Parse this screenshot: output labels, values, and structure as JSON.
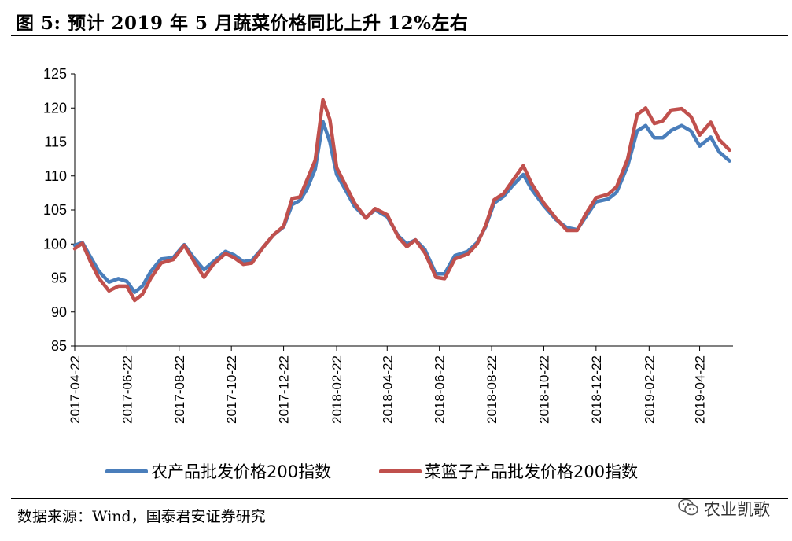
{
  "header": {
    "title": "图 5:  预计 2019 年 5 月蔬菜价格同比上升 12%左右"
  },
  "footer": {
    "source": "数据来源：Wind，国泰君安证券研究",
    "watermark": "农业凯歌",
    "watermark_icon": "wechat-icon"
  },
  "chart_data": {
    "type": "line",
    "title": "",
    "xlabel": "",
    "ylabel": "",
    "ylim": [
      85,
      125
    ],
    "yticks": [
      85,
      90,
      95,
      100,
      105,
      110,
      115,
      120,
      125
    ],
    "xlim": [
      "2017-04-22",
      "2019-05-31"
    ],
    "xticks": [
      "2017-04-22",
      "2017-06-22",
      "2017-08-22",
      "2017-10-22",
      "2017-12-22",
      "2018-02-22",
      "2018-04-22",
      "2018-06-22",
      "2018-08-22",
      "2018-10-22",
      "2018-12-22",
      "2019-02-22",
      "2019-04-22"
    ],
    "grid": false,
    "legend_position": "bottom",
    "series": [
      {
        "name": "农产品批发价格200指数",
        "color": "#4a7ebb",
        "points": [
          [
            "2017-04-22",
            99.8
          ],
          [
            "2017-05-01",
            100.2
          ],
          [
            "2017-05-10",
            98.2
          ],
          [
            "2017-05-20",
            96.0
          ],
          [
            "2017-06-01",
            94.4
          ],
          [
            "2017-06-12",
            94.9
          ],
          [
            "2017-06-22",
            94.5
          ],
          [
            "2017-07-01",
            92.9
          ],
          [
            "2017-07-10",
            93.8
          ],
          [
            "2017-07-20",
            96.0
          ],
          [
            "2017-08-01",
            97.8
          ],
          [
            "2017-08-15",
            98.0
          ],
          [
            "2017-08-28",
            99.9
          ],
          [
            "2017-09-08",
            98.0
          ],
          [
            "2017-09-20",
            96.2
          ],
          [
            "2017-10-01",
            97.4
          ],
          [
            "2017-10-15",
            98.9
          ],
          [
            "2017-10-25",
            98.4
          ],
          [
            "2017-11-05",
            97.4
          ],
          [
            "2017-11-15",
            97.6
          ],
          [
            "2017-11-28",
            99.5
          ],
          [
            "2017-12-10",
            101.3
          ],
          [
            "2017-12-22",
            102.5
          ],
          [
            "2018-01-01",
            105.8
          ],
          [
            "2018-01-10",
            106.4
          ],
          [
            "2018-01-18",
            108.0
          ],
          [
            "2018-01-28",
            111.0
          ],
          [
            "2018-02-06",
            118.0
          ],
          [
            "2018-02-14",
            115.0
          ],
          [
            "2018-02-22",
            110.2
          ],
          [
            "2018-03-05",
            107.8
          ],
          [
            "2018-03-15",
            105.5
          ],
          [
            "2018-03-28",
            103.9
          ],
          [
            "2018-04-08",
            105.0
          ],
          [
            "2018-04-22",
            104.0
          ],
          [
            "2018-05-05",
            101.2
          ],
          [
            "2018-05-15",
            100.0
          ],
          [
            "2018-05-25",
            100.6
          ],
          [
            "2018-06-05",
            99.2
          ],
          [
            "2018-06-18",
            95.6
          ],
          [
            "2018-06-28",
            95.6
          ],
          [
            "2018-07-10",
            98.3
          ],
          [
            "2018-07-25",
            98.9
          ],
          [
            "2018-08-05",
            100.2
          ],
          [
            "2018-08-15",
            102.5
          ],
          [
            "2018-08-25",
            106.0
          ],
          [
            "2018-09-05",
            107.0
          ],
          [
            "2018-09-15",
            108.5
          ],
          [
            "2018-09-28",
            110.2
          ],
          [
            "2018-10-08",
            108.0
          ],
          [
            "2018-10-22",
            105.6
          ],
          [
            "2018-11-05",
            103.6
          ],
          [
            "2018-11-18",
            102.4
          ],
          [
            "2018-11-30",
            102.1
          ],
          [
            "2018-12-10",
            104.0
          ],
          [
            "2018-12-22",
            106.2
          ],
          [
            "2019-01-05",
            106.6
          ],
          [
            "2019-01-15",
            107.6
          ],
          [
            "2019-01-28",
            111.5
          ],
          [
            "2019-02-08",
            116.6
          ],
          [
            "2019-02-18",
            117.4
          ],
          [
            "2019-02-28",
            115.6
          ],
          [
            "2019-03-10",
            115.6
          ],
          [
            "2019-03-20",
            116.7
          ],
          [
            "2019-04-01",
            117.4
          ],
          [
            "2019-04-12",
            116.6
          ],
          [
            "2019-04-22",
            114.4
          ],
          [
            "2019-05-05",
            115.7
          ],
          [
            "2019-05-15",
            113.5
          ],
          [
            "2019-05-27",
            112.2
          ]
        ]
      },
      {
        "name": "菜篮子产品批发价格200指数",
        "color": "#c0504d",
        "points": [
          [
            "2017-04-22",
            99.3
          ],
          [
            "2017-05-01",
            100.1
          ],
          [
            "2017-05-10",
            97.5
          ],
          [
            "2017-05-20",
            95.0
          ],
          [
            "2017-06-01",
            93.1
          ],
          [
            "2017-06-12",
            93.8
          ],
          [
            "2017-06-22",
            93.8
          ],
          [
            "2017-07-01",
            91.7
          ],
          [
            "2017-07-10",
            92.6
          ],
          [
            "2017-07-20",
            95.0
          ],
          [
            "2017-08-01",
            97.2
          ],
          [
            "2017-08-15",
            97.7
          ],
          [
            "2017-08-28",
            99.8
          ],
          [
            "2017-09-08",
            97.5
          ],
          [
            "2017-09-20",
            95.1
          ],
          [
            "2017-10-01",
            97.0
          ],
          [
            "2017-10-15",
            98.6
          ],
          [
            "2017-10-25",
            98.0
          ],
          [
            "2017-11-05",
            97.0
          ],
          [
            "2017-11-15",
            97.2
          ],
          [
            "2017-11-28",
            99.5
          ],
          [
            "2017-12-10",
            101.3
          ],
          [
            "2017-12-22",
            102.6
          ],
          [
            "2018-01-01",
            106.7
          ],
          [
            "2018-01-10",
            106.9
          ],
          [
            "2018-01-18",
            109.3
          ],
          [
            "2018-01-28",
            112.3
          ],
          [
            "2018-02-06",
            121.2
          ],
          [
            "2018-02-14",
            118.3
          ],
          [
            "2018-02-22",
            111.2
          ],
          [
            "2018-03-05",
            108.5
          ],
          [
            "2018-03-15",
            106.0
          ],
          [
            "2018-03-28",
            103.8
          ],
          [
            "2018-04-08",
            105.2
          ],
          [
            "2018-04-22",
            104.3
          ],
          [
            "2018-05-05",
            101.0
          ],
          [
            "2018-05-15",
            99.6
          ],
          [
            "2018-05-25",
            100.6
          ],
          [
            "2018-06-05",
            98.7
          ],
          [
            "2018-06-18",
            95.1
          ],
          [
            "2018-06-28",
            94.9
          ],
          [
            "2018-07-10",
            97.8
          ],
          [
            "2018-07-25",
            98.5
          ],
          [
            "2018-08-05",
            100.0
          ],
          [
            "2018-08-15",
            102.7
          ],
          [
            "2018-08-25",
            106.5
          ],
          [
            "2018-09-05",
            107.4
          ],
          [
            "2018-09-15",
            109.2
          ],
          [
            "2018-09-28",
            111.5
          ],
          [
            "2018-10-08",
            108.8
          ],
          [
            "2018-10-22",
            106.0
          ],
          [
            "2018-11-05",
            103.8
          ],
          [
            "2018-11-18",
            102.0
          ],
          [
            "2018-11-30",
            102.0
          ],
          [
            "2018-12-10",
            104.4
          ],
          [
            "2018-12-22",
            106.8
          ],
          [
            "2019-01-05",
            107.3
          ],
          [
            "2019-01-15",
            108.4
          ],
          [
            "2019-01-28",
            112.5
          ],
          [
            "2019-02-08",
            119.0
          ],
          [
            "2019-02-18",
            120.0
          ],
          [
            "2019-02-28",
            117.7
          ],
          [
            "2019-03-10",
            118.1
          ],
          [
            "2019-03-20",
            119.7
          ],
          [
            "2019-04-01",
            119.9
          ],
          [
            "2019-04-12",
            118.7
          ],
          [
            "2019-04-22",
            116.0
          ],
          [
            "2019-05-05",
            117.9
          ],
          [
            "2019-05-15",
            115.3
          ],
          [
            "2019-05-27",
            113.8
          ]
        ]
      }
    ]
  }
}
